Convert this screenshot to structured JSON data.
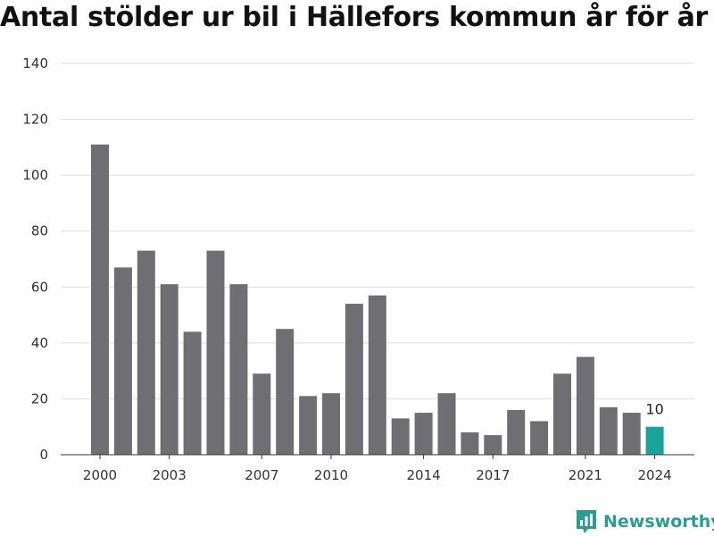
{
  "title": "Antal stölder ur bil i Hällefors kommun år för år",
  "brand": {
    "name": "Newsworthy",
    "icon": "newsworthy-logo-icon",
    "color": "#2a9d93"
  },
  "colors": {
    "bar": "#6e6e73",
    "highlight": "#1aa39a",
    "grid": "#dddddd",
    "axis": "#333333"
  },
  "chart_data": {
    "type": "bar",
    "title": "Antal stölder ur bil i Hällefors kommun år för år",
    "xlabel": "",
    "ylabel": "",
    "x": [
      2000,
      2001,
      2002,
      2003,
      2004,
      2005,
      2006,
      2007,
      2008,
      2009,
      2010,
      2011,
      2012,
      2013,
      2014,
      2015,
      2016,
      2017,
      2018,
      2019,
      2020,
      2021,
      2022,
      2023,
      2024
    ],
    "values": [
      111,
      67,
      73,
      61,
      44,
      73,
      61,
      29,
      45,
      21,
      22,
      54,
      57,
      13,
      15,
      22,
      8,
      7,
      16,
      12,
      29,
      35,
      17,
      15,
      10
    ],
    "ylim": [
      0,
      140
    ],
    "yticks": [
      0,
      20,
      40,
      60,
      80,
      100,
      120,
      140
    ],
    "xtick_labels": [
      2000,
      2003,
      2007,
      2010,
      2014,
      2017,
      2021,
      2024
    ],
    "highlight": {
      "x": 2024,
      "label": "10"
    },
    "grid": true,
    "legend": "none"
  }
}
